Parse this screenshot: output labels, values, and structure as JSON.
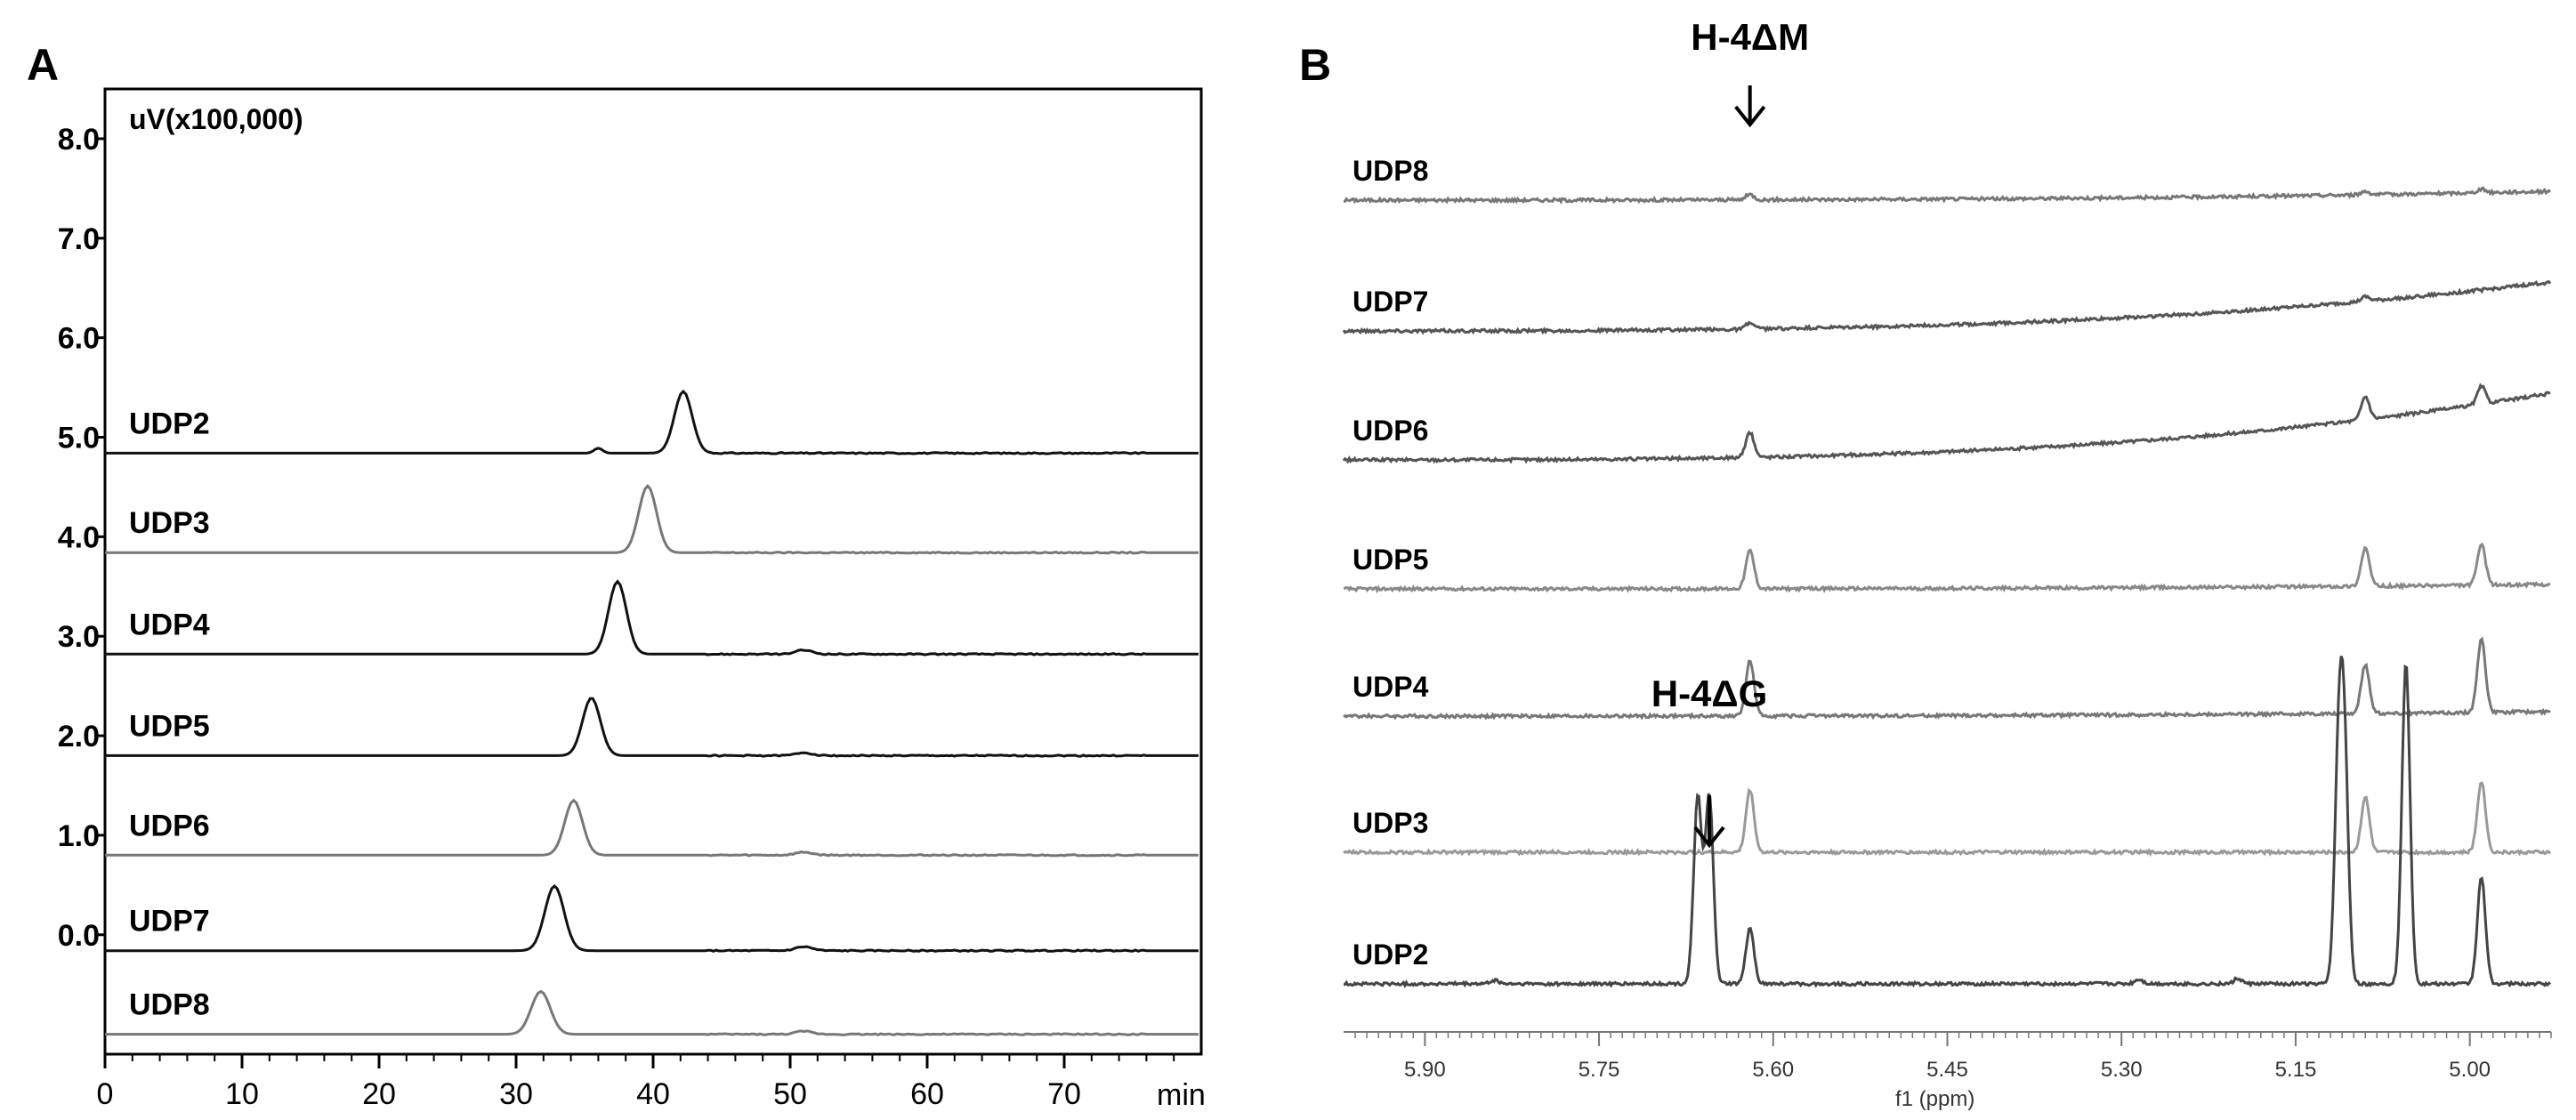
{
  "chart_data": [
    {
      "panel_label": "A",
      "type": "line",
      "ylabel": "uV(x100,000)",
      "xlabel": "min",
      "xlim": [
        0,
        80
      ],
      "ylim": [
        -1.2,
        8.5
      ],
      "x_ticks": [
        0,
        10,
        20,
        30,
        40,
        50,
        60,
        70
      ],
      "y_ticks": [
        "0.0",
        "1.0",
        "2.0",
        "3.0",
        "4.0",
        "5.0",
        "6.0",
        "7.0",
        "8.0"
      ],
      "grid": false,
      "series": [
        {
          "name": "UDP2",
          "baseline": 4.84,
          "color": "#111111",
          "peaks": [
            {
              "x": 42.2,
              "h": 0.62,
              "w": 0.65
            },
            {
              "x": 36.0,
              "h": 0.05,
              "w": 0.3
            }
          ]
        },
        {
          "name": "UDP3",
          "baseline": 3.84,
          "color": "#777777",
          "peaks": [
            {
              "x": 39.6,
              "h": 0.67,
              "w": 0.65
            }
          ]
        },
        {
          "name": "UDP4",
          "baseline": 2.82,
          "color": "#111111",
          "peaks": [
            {
              "x": 37.4,
              "h": 0.73,
              "w": 0.65
            },
            {
              "x": 51.0,
              "h": 0.04,
              "w": 0.6
            }
          ]
        },
        {
          "name": "UDP5",
          "baseline": 1.8,
          "color": "#111111",
          "peaks": [
            {
              "x": 35.5,
              "h": 0.58,
              "w": 0.65
            },
            {
              "x": 51.0,
              "h": 0.03,
              "w": 0.6
            }
          ]
        },
        {
          "name": "UDP6",
          "baseline": 0.8,
          "color": "#777777",
          "peaks": [
            {
              "x": 34.2,
              "h": 0.55,
              "w": 0.65
            },
            {
              "x": 51.0,
              "h": 0.03,
              "w": 0.6
            }
          ]
        },
        {
          "name": "UDP7",
          "baseline": -0.16,
          "color": "#111111",
          "peaks": [
            {
              "x": 32.8,
              "h": 0.65,
              "w": 0.7
            },
            {
              "x": 51.0,
              "h": 0.04,
              "w": 0.6
            }
          ]
        },
        {
          "name": "UDP8",
          "baseline": -1.0,
          "color": "#777777",
          "peaks": [
            {
              "x": 31.8,
              "h": 0.43,
              "w": 0.7
            },
            {
              "x": 51.0,
              "h": 0.03,
              "w": 0.6
            }
          ]
        }
      ]
    },
    {
      "panel_label": "B",
      "type": "line",
      "xlabel": "f1 (ppm)",
      "xlim": [
        5.97,
        4.93
      ],
      "x_ticks": [
        "5.90",
        "5.75",
        "5.60",
        "5.45",
        "5.30",
        "5.15",
        "5.00"
      ],
      "reversed_x": true,
      "grid": false,
      "annotations": [
        {
          "text": "H-4ΔM",
          "x": 5.62,
          "trace": "UDP8"
        },
        {
          "text": "H-4ΔG",
          "x": 5.655,
          "trace": "UDP3"
        }
      ],
      "series": [
        {
          "name": "UDP8",
          "color": "#777777",
          "drift_end": 0.1,
          "peaks": [
            {
              "x": 5.62,
              "h": 0.06
            },
            {
              "x": 5.09,
              "h": 0.04
            },
            {
              "x": 4.99,
              "h": 0.04
            }
          ]
        },
        {
          "name": "UDP7",
          "color": "#555555",
          "drift_end": 0.55,
          "peaks": [
            {
              "x": 5.62,
              "h": 0.07
            },
            {
              "x": 5.09,
              "h": 0.05
            }
          ]
        },
        {
          "name": "UDP6",
          "color": "#555555",
          "drift_end": 0.75,
          "peaks": [
            {
              "x": 5.62,
              "h": 0.28
            },
            {
              "x": 5.09,
              "h": 0.26
            },
            {
              "x": 4.99,
              "h": 0.2
            }
          ]
        },
        {
          "name": "UDP5",
          "color": "#888888",
          "drift_end": 0.05,
          "peaks": [
            {
              "x": 5.62,
              "h": 0.43
            },
            {
              "x": 5.09,
              "h": 0.43
            },
            {
              "x": 4.99,
              "h": 0.46
            }
          ]
        },
        {
          "name": "UDP4",
          "color": "#777777",
          "drift_end": 0.05,
          "peaks": [
            {
              "x": 5.62,
              "h": 0.62
            },
            {
              "x": 5.09,
              "h": 0.55
            },
            {
              "x": 4.99,
              "h": 0.82
            }
          ]
        },
        {
          "name": "UDP3",
          "color": "#999999",
          "drift_end": 0.0,
          "peaks": [
            {
              "x": 5.62,
              "h": 0.7
            },
            {
              "x": 5.09,
              "h": 0.62
            },
            {
              "x": 4.99,
              "h": 0.8
            }
          ]
        },
        {
          "name": "UDP2",
          "color": "#444444",
          "drift_end": 0.0,
          "peaks": [
            {
              "x": 5.665,
              "h": 2.1
            },
            {
              "x": 5.655,
              "h": 2.1
            },
            {
              "x": 5.62,
              "h": 0.62
            },
            {
              "x": 5.113,
              "h": 2.38
            },
            {
              "x": 5.108,
              "h": 2.38
            },
            {
              "x": 5.055,
              "h": 3.6
            },
            {
              "x": 4.99,
              "h": 1.2
            },
            {
              "x": 5.285,
              "h": 0.05
            },
            {
              "x": 5.2,
              "h": 0.06
            },
            {
              "x": 5.84,
              "h": 0.04
            }
          ]
        }
      ]
    }
  ]
}
